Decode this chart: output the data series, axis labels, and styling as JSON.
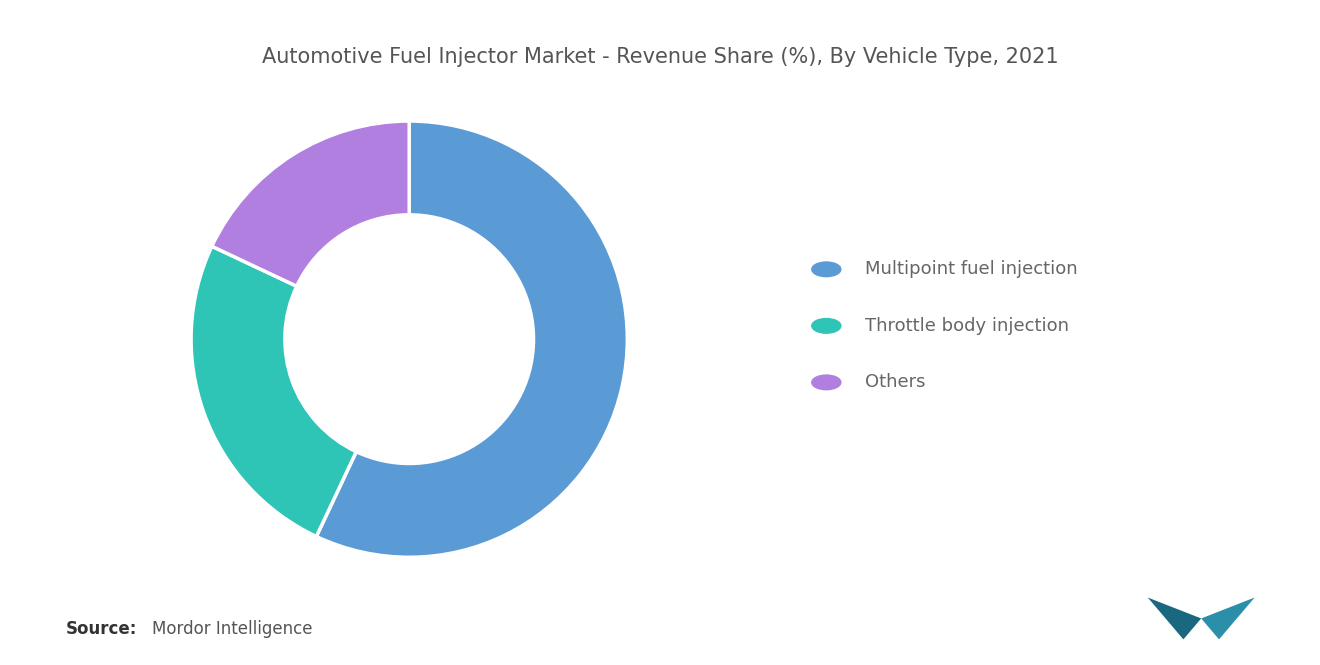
{
  "title": "Automotive Fuel Injector Market - Revenue Share (%), By Vehicle Type, 2021",
  "segments": [
    {
      "label": "Multipoint fuel injection",
      "value": 57,
      "color": "#5B9BD5"
    },
    {
      "label": "Throttle body injection",
      "value": 25,
      "color": "#2EC4B6"
    },
    {
      "label": "Others",
      "value": 18,
      "color": "#B07FE0"
    }
  ],
  "background_color": "#ffffff",
  "title_fontsize": 15,
  "title_color": "#555555",
  "legend_fontsize": 13,
  "legend_text_color": "#666666",
  "source_label": "Source:",
  "source_detail": "Mordor Intelligence",
  "source_fontsize": 12
}
